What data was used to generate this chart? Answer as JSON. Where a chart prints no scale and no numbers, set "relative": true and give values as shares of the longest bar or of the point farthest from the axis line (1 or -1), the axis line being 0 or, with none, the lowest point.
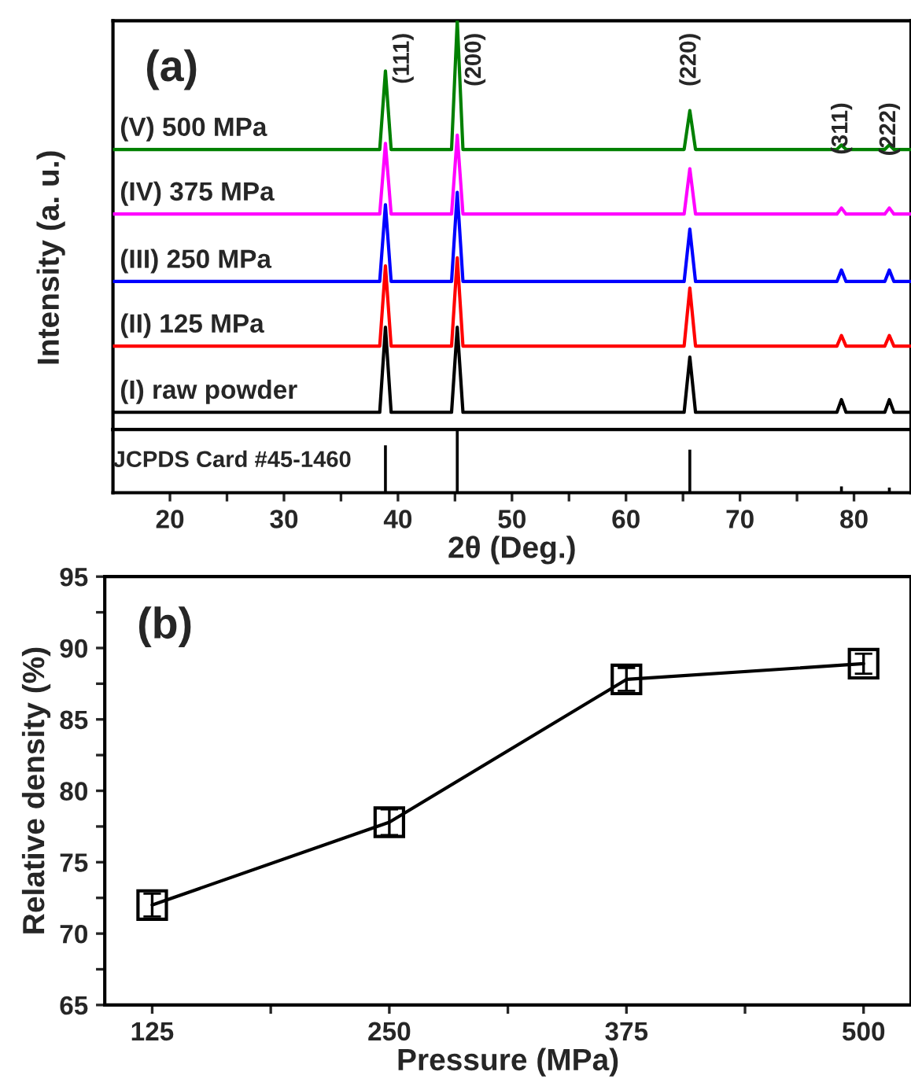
{
  "chart_data": [
    {
      "type": "line",
      "relative": true,
      "ylabel": "Intensity (a. u.)",
      "xlim": [
        15,
        85
      ],
      "tick_labels": false,
      "grid": false,
      "legend": false,
      "marker": "none",
      "line_style": "solid",
      "annotations": [
        "(a)",
        "(111)",
        "(200)",
        "(220)",
        "(311)",
        "(222)"
      ],
      "series": [
        {
          "name": "(I) raw powder",
          "color": "#000000",
          "x": [
            15,
            38.4,
            38.9,
            39.4,
            44.7,
            45.2,
            45.7,
            65.1,
            65.6,
            66.1,
            78.5,
            78.9,
            79.3,
            82.7,
            83.1,
            83.5,
            85
          ],
          "values": [
            0.042,
            0.042,
            0.25,
            0.042,
            0.042,
            0.25,
            0.042,
            0.042,
            0.177,
            0.042,
            0.042,
            0.073,
            0.042,
            0.042,
            0.073,
            0.042,
            0.042
          ]
        },
        {
          "name": "(II) 125 MPa",
          "color": "#ff0000",
          "x": [
            15,
            38.4,
            38.9,
            39.4,
            44.7,
            45.2,
            45.7,
            65.1,
            65.6,
            66.1,
            78.5,
            78.9,
            79.3,
            82.7,
            83.1,
            83.5,
            85
          ],
          "values": [
            0.204,
            0.204,
            0.4,
            0.204,
            0.204,
            0.42,
            0.204,
            0.204,
            0.346,
            0.204,
            0.204,
            0.23,
            0.204,
            0.204,
            0.23,
            0.204,
            0.204
          ]
        },
        {
          "name": "(III) 250 MPa",
          "color": "#0000ff",
          "x": [
            15,
            38.4,
            38.9,
            39.4,
            44.7,
            45.2,
            45.7,
            65.1,
            65.6,
            66.1,
            78.5,
            78.9,
            79.3,
            82.7,
            83.1,
            83.5,
            85
          ],
          "values": [
            0.362,
            0.362,
            0.55,
            0.362,
            0.362,
            0.58,
            0.362,
            0.362,
            0.49,
            0.362,
            0.362,
            0.39,
            0.362,
            0.362,
            0.39,
            0.362,
            0.362
          ]
        },
        {
          "name": "(IV) 375 MPa",
          "color": "#ff00ff",
          "x": [
            15,
            38.4,
            38.9,
            39.4,
            44.7,
            45.2,
            45.7,
            65.1,
            65.6,
            66.1,
            78.5,
            78.9,
            79.3,
            82.7,
            83.1,
            83.5,
            85
          ],
          "values": [
            0.527,
            0.527,
            0.7,
            0.527,
            0.527,
            0.72,
            0.527,
            0.527,
            0.638,
            0.527,
            0.527,
            0.542,
            0.527,
            0.527,
            0.542,
            0.527,
            0.527
          ]
        },
        {
          "name": "(V) 500 MPa",
          "color": "#008000",
          "x": [
            15,
            38.4,
            38.9,
            39.4,
            44.7,
            45.2,
            45.7,
            65.1,
            65.6,
            66.1,
            78.5,
            78.9,
            79.3,
            82.7,
            83.1,
            83.5,
            85
          ],
          "values": [
            0.685,
            0.685,
            0.877,
            0.685,
            0.685,
            1.0,
            0.685,
            0.685,
            0.78,
            0.685,
            0.685,
            0.696,
            0.685,
            0.685,
            0.696,
            0.685,
            0.685
          ]
        }
      ]
    },
    {
      "type": "bar",
      "relative": true,
      "xlabel": "2θ (Deg.)",
      "xlim": [
        15,
        85
      ],
      "tick_labels": "x",
      "grid": false,
      "xticks": [
        20,
        {
          "value": 25,
          "label": null
        },
        30,
        {
          "value": 35,
          "label": null
        },
        40,
        {
          "value": 45,
          "label": null
        },
        50,
        {
          "value": 55,
          "label": null
        },
        60,
        {
          "value": 65,
          "label": null
        },
        70,
        {
          "value": 75,
          "label": null
        },
        80
      ],
      "annotations": [
        "JCPDS Card #45-1460"
      ],
      "x": [
        38.9,
        45.2,
        65.6,
        78.9,
        83.1
      ],
      "values": [
        0.75,
        1.0,
        0.68,
        0.1,
        0.08
      ],
      "color": "#000000"
    },
    {
      "type": "line",
      "xlabel": "Pressure (MPa)",
      "ylabel": "Relative density (%)",
      "xlim": [
        100,
        525
      ],
      "ylim": [
        65,
        95
      ],
      "xticks": [
        125,
        {
          "value": 187.5,
          "label": null
        },
        250,
        {
          "value": 312.5,
          "label": null
        },
        375,
        {
          "value": 437.5,
          "label": null
        },
        500
      ],
      "yticks": [
        65,
        {
          "value": 67.5,
          "label": null
        },
        70,
        {
          "value": 72.5,
          "label": null
        },
        75,
        {
          "value": 77.5,
          "label": null
        },
        80,
        {
          "value": 82.5,
          "label": null
        },
        85,
        {
          "value": 87.5,
          "label": null
        },
        90,
        {
          "value": 92.5,
          "label": null
        },
        95
      ],
      "grid": false,
      "legend": false,
      "marker": "square",
      "line_style": "solid",
      "annotations": [
        "(b)"
      ],
      "x": [
        125,
        250,
        375,
        500
      ],
      "series": [
        {
          "color": "#000000",
          "values": [
            72.0,
            77.8,
            87.8,
            88.9
          ],
          "errors": [
            0.8,
            0.9,
            0.8,
            0.7
          ]
        }
      ]
    }
  ]
}
